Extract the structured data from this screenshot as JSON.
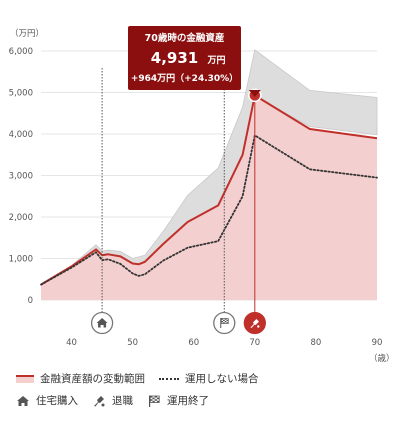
{
  "chart_data": {
    "type": "area",
    "unit_label": "（万円）",
    "x_unit_label": "（歳）",
    "xlim": [
      35,
      90
    ],
    "ylim": [
      0,
      6000
    ],
    "x_ticks": [
      40,
      50,
      60,
      70,
      80,
      90
    ],
    "y_ticks": [
      0,
      1000,
      2000,
      3000,
      4000,
      5000,
      6000
    ],
    "y_tick_labels": [
      "0",
      "1,000",
      "2,000",
      "3,000",
      "4,000",
      "5,000",
      "6,000"
    ],
    "range_band": {
      "x": [
        35,
        40,
        44,
        45,
        46,
        48,
        50,
        52,
        55,
        59,
        64,
        68,
        70,
        79,
        90
      ],
      "upper": [
        390,
        830,
        1330,
        1180,
        1200,
        1170,
        1000,
        1080,
        1650,
        2520,
        3180,
        4650,
        6030,
        5050,
        4880
      ],
      "lower": [
        360,
        790,
        1170,
        1000,
        1040,
        960,
        810,
        840,
        1250,
        1820,
        2300,
        3420,
        4900,
        4180,
        3980
      ]
    },
    "series": [
      {
        "name": "金融資産額の変動範囲",
        "color": "#c0302b",
        "x": [
          35,
          40,
          44,
          45,
          46,
          48,
          50,
          51,
          52,
          55,
          59,
          64,
          68,
          70,
          79,
          90
        ],
        "values": [
          370,
          810,
          1220,
          1080,
          1100,
          1050,
          880,
          860,
          920,
          1350,
          1880,
          2280,
          3500,
          4931,
          4120,
          3900
        ]
      },
      {
        "name": "運用しない場合",
        "color": "#333333",
        "style": "dotted",
        "x": [
          35,
          40,
          44,
          45,
          46,
          48,
          50,
          51,
          52,
          55,
          59,
          64,
          68,
          70,
          79,
          90
        ],
        "values": [
          370,
          780,
          1150,
          960,
          980,
          870,
          640,
          580,
          620,
          950,
          1260,
          1420,
          2500,
          3967,
          3150,
          2950
        ]
      }
    ],
    "highlight": {
      "x": 70,
      "y": 4931,
      "color": "#c0302b"
    },
    "tooltip": {
      "title": "70歳時の金融資産",
      "value": "4,931",
      "unit": "万円",
      "diff": "+964万円（+24.30%）",
      "bg": "#8b0f0f"
    },
    "events": [
      {
        "x": 45,
        "icon": "home-icon",
        "label": "住宅購入"
      },
      {
        "x": 65,
        "icon": "checkered-flag-icon",
        "label": "運用終了"
      },
      {
        "x": 70,
        "icon": "retire-icon",
        "label": "退職"
      }
    ]
  },
  "legend": {
    "range_label": "金融資産額の変動範囲",
    "no_invest_label": "運用しない場合",
    "housing_label": "住宅購入",
    "retire_label": "退職",
    "end_label": "運用終了"
  },
  "colors": {
    "band": "#dddddd",
    "area": "#f4cfcf",
    "line": "#c0302b",
    "grid": "#e6e6e6"
  }
}
